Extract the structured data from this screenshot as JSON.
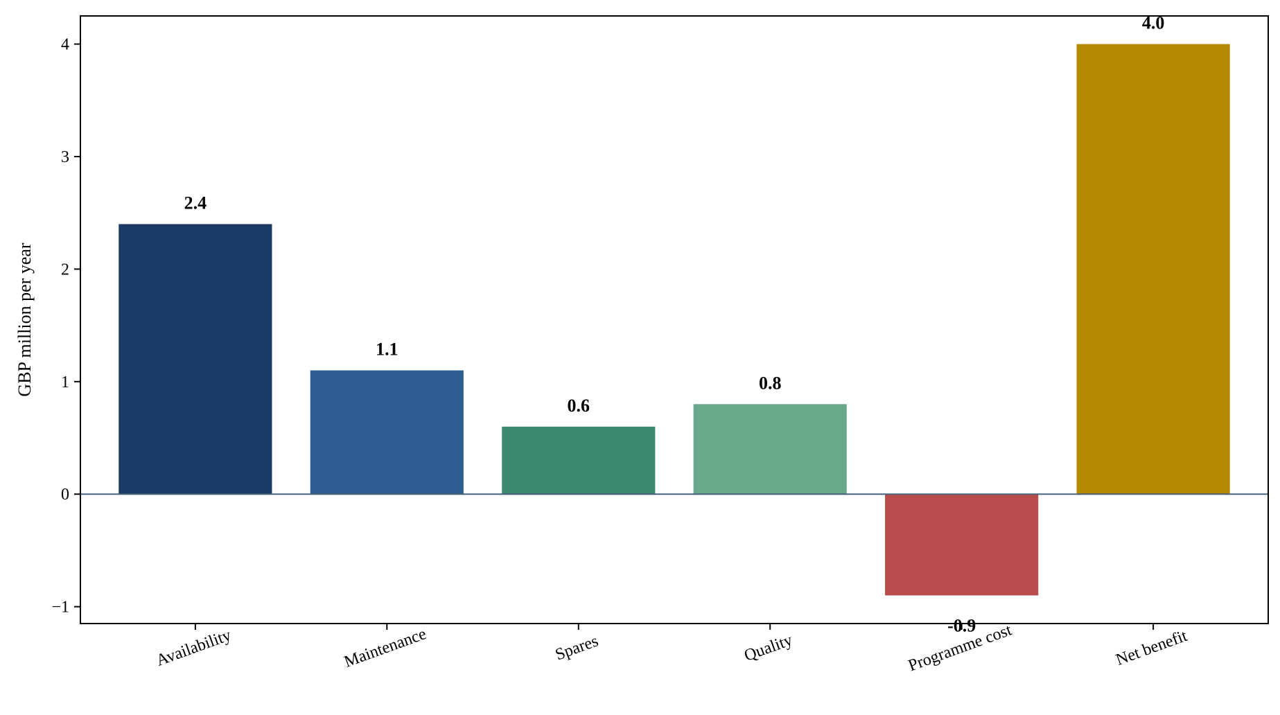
{
  "chart_data": {
    "type": "bar",
    "title": "",
    "xlabel": "",
    "ylabel": "GBP million per year",
    "categories": [
      "Availability",
      "Maintenance",
      "Spares",
      "Quality",
      "Programme cost",
      "Net benefit"
    ],
    "values": [
      2.4,
      1.1,
      0.6,
      0.8,
      -0.9,
      4.0
    ],
    "value_labels": [
      "2.4",
      "1.1",
      "0.6",
      "0.8",
      "-0.9",
      "4.0"
    ],
    "colors": [
      "#1b3a66",
      "#2e5d91",
      "#3c8b6e",
      "#6aa88b",
      "#b84c4c",
      "#b38a00"
    ],
    "ylim": [
      -1.15,
      4.25
    ],
    "yticks": [
      -1,
      0,
      1,
      2,
      3,
      4
    ],
    "ytick_labels": [
      "−1",
      "0",
      "1",
      "2",
      "3",
      "4"
    ],
    "zero_line_color": "#4a6078",
    "grid": false,
    "legend": "none"
  }
}
